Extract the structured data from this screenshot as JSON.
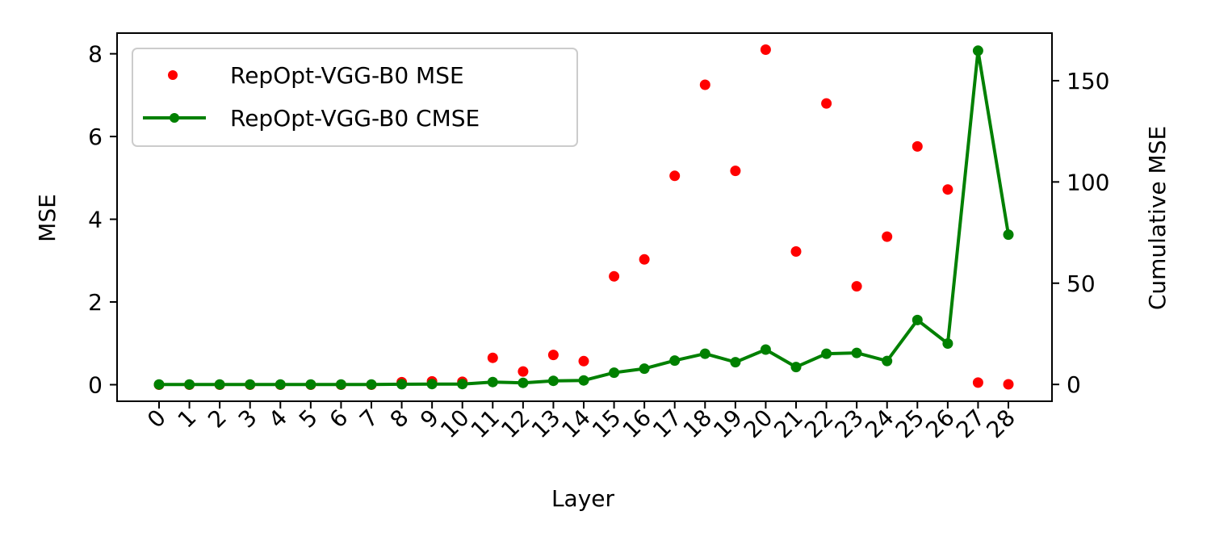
{
  "chart_data": {
    "type": "scatter+line",
    "x": [
      0,
      1,
      2,
      3,
      4,
      5,
      6,
      7,
      8,
      9,
      10,
      11,
      12,
      13,
      14,
      15,
      16,
      17,
      18,
      19,
      20,
      21,
      22,
      23,
      24,
      25,
      26,
      27,
      28
    ],
    "xticklabels": [
      "0",
      "1",
      "2",
      "3",
      "4",
      "5",
      "6",
      "7",
      "8",
      "9",
      "10",
      "11",
      "12",
      "13",
      "14",
      "15",
      "16",
      "17",
      "18",
      "19",
      "20",
      "21",
      "22",
      "23",
      "24",
      "25",
      "26",
      "27",
      "28"
    ],
    "series": [
      {
        "name": "RepOpt-VGG-B0 MSE",
        "kind": "scatter",
        "axis": "left",
        "color": "#ff0000",
        "values": [
          0.0,
          0.0,
          0.0,
          0.0,
          0.0,
          0.0,
          0.0,
          0.0,
          0.06,
          0.08,
          0.07,
          0.65,
          0.32,
          0.72,
          0.57,
          2.62,
          3.03,
          5.05,
          7.25,
          5.17,
          8.1,
          3.22,
          6.8,
          2.38,
          3.58,
          5.76,
          4.72,
          0.05,
          0.01
        ]
      },
      {
        "name": "RepOpt-VGG-B0 CMSE",
        "kind": "line",
        "axis": "right",
        "color": "#008000",
        "values": [
          0.0,
          0.0,
          0.0,
          0.0,
          0.0,
          0.0,
          0.0,
          0.0,
          0.1,
          0.2,
          0.2,
          1.2,
          0.8,
          1.8,
          2.0,
          5.8,
          7.8,
          11.8,
          15.2,
          11.0,
          17.2,
          8.6,
          15.2,
          15.6,
          11.6,
          31.8,
          20.2,
          164.8,
          74.0
        ]
      }
    ],
    "xlabel": "Layer",
    "ylabel": "MSE",
    "y2label": "Cumulative MSE",
    "ylim": [
      -0.4,
      8.5
    ],
    "y2lim": [
      -8.3,
      173.5
    ],
    "yticks": [
      0,
      2,
      4,
      6,
      8
    ],
    "y2ticks": [
      0,
      50,
      100,
      150
    ],
    "legend_position": "top-left"
  }
}
